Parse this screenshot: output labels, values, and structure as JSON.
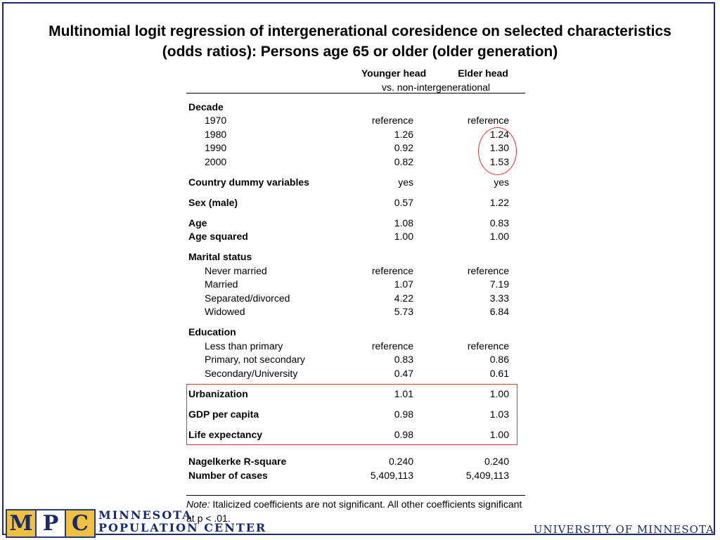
{
  "title": {
    "line1": "Multinomial logit regression of intergenerational coresidence on selected characteristics",
    "line2": "(odds ratios): Persons age 65 or older (older generation)"
  },
  "table": {
    "col_younger": "Younger head",
    "col_elder": "Elder head",
    "subheader": "vs. non-intergenerational",
    "rows": [
      {
        "label": "Decade",
        "bold": true,
        "indent": false,
        "v1": "",
        "v2": "",
        "gap_before": false
      },
      {
        "label": "1970",
        "bold": false,
        "indent": true,
        "v1": "reference",
        "v2": "reference",
        "gap_before": false
      },
      {
        "label": "1980",
        "bold": false,
        "indent": true,
        "v1": "1.26",
        "v2": "1.24",
        "gap_before": false
      },
      {
        "label": "1990",
        "bold": false,
        "indent": true,
        "v1": "0.92",
        "v2": "1.30",
        "gap_before": false
      },
      {
        "label": "2000",
        "bold": false,
        "indent": true,
        "v1": "0.82",
        "v2": "1.53",
        "gap_before": false
      },
      {
        "label": "Country dummy variables",
        "bold": true,
        "indent": false,
        "v1": "yes",
        "v2": "yes",
        "gap_before": true
      },
      {
        "label": "Sex (male)",
        "bold": true,
        "indent": false,
        "v1": "0.57",
        "v2": "1.22",
        "gap_before": true
      },
      {
        "label": "Age",
        "bold": true,
        "indent": false,
        "v1": "1.08",
        "v2": "0.83",
        "gap_before": true
      },
      {
        "label": "Age squared",
        "bold": true,
        "indent": false,
        "v1": "1.00",
        "v2": "1.00",
        "gap_before": false
      },
      {
        "label": "Marital status",
        "bold": true,
        "indent": false,
        "v1": "",
        "v2": "",
        "gap_before": true
      },
      {
        "label": "Never married",
        "bold": false,
        "indent": true,
        "v1": "reference",
        "v2": "reference",
        "gap_before": false
      },
      {
        "label": "Married",
        "bold": false,
        "indent": true,
        "v1": "1.07",
        "v2": "7.19",
        "gap_before": false
      },
      {
        "label": "Separated/divorced",
        "bold": false,
        "indent": true,
        "v1": "4.22",
        "v2": "3.33",
        "gap_before": false
      },
      {
        "label": "Widowed",
        "bold": false,
        "indent": true,
        "v1": "5.73",
        "v2": "6.84",
        "gap_before": false
      },
      {
        "label": "Education",
        "bold": true,
        "indent": false,
        "v1": "",
        "v2": "",
        "gap_before": true
      },
      {
        "label": "Less than primary",
        "bold": false,
        "indent": true,
        "v1": "reference",
        "v2": "reference",
        "gap_before": false
      },
      {
        "label": "Primary, not secondary",
        "bold": false,
        "indent": true,
        "v1": "0.83",
        "v2": "0.86",
        "gap_before": false
      },
      {
        "label": "Secondary/University",
        "bold": false,
        "indent": true,
        "v1": "0.47",
        "v2": "0.61",
        "gap_before": false
      },
      {
        "label": "Urbanization",
        "bold": true,
        "indent": false,
        "v1": "1.01",
        "v2": "1.00",
        "gap_before": true
      },
      {
        "label": "GDP per capita",
        "bold": true,
        "indent": false,
        "v1": "0.98",
        "v2": "1.03",
        "gap_before": true
      },
      {
        "label": "Life expectancy",
        "bold": true,
        "indent": false,
        "v1": "0.98",
        "v2": "1.00",
        "gap_before": true
      },
      {
        "label": "Nagelkerke R-square",
        "bold": true,
        "indent": false,
        "v1": "0.240",
        "v2": "0.240",
        "gap_before": true,
        "double_gap": true
      },
      {
        "label": "Number of cases",
        "bold": true,
        "indent": false,
        "v1": "5,409,113",
        "v2": "5,409,113",
        "gap_before": false
      }
    ]
  },
  "note": {
    "prefix": "Note:",
    "text": "Italicized coefficients are not significant. All other coefficients significant at p < .01."
  },
  "footer": {
    "logo_m": "M",
    "logo_p": "P",
    "logo_c": "C",
    "org_line1": "MINNESOTA",
    "org_line2": "POPULATION CENTER",
    "university": "UNIVERSITY OF MINNESOTA"
  },
  "colors": {
    "highlight": "#e03030",
    "brand": "#1a2a6c"
  }
}
